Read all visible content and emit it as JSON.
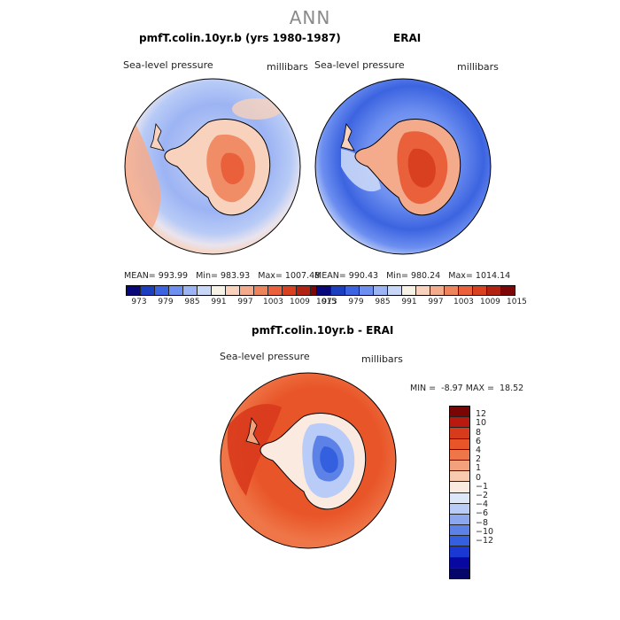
{
  "main_title": "ANN",
  "panels": [
    {
      "title": "pmfT.colin.10yr.b (yrs 1980-1987)",
      "variable": "Sea-level pressure",
      "units": "millibars",
      "stats": {
        "mean_label": "MEAN=",
        "mean": "993.99",
        "min_label": "Min=",
        "min": "983.93",
        "max_label": "Max=",
        "max": "1007.48"
      }
    },
    {
      "title": "ERAI",
      "variable": "Sea-level pressure",
      "units": "millibars",
      "stats": {
        "mean_label": "MEAN=",
        "mean": "990.43",
        "min_label": "Min=",
        "min": "980.24",
        "max_label": "Max=",
        "max": "1014.14"
      }
    },
    {
      "title": "pmfT.colin.10yr.b - ERAI",
      "variable": "Sea-level pressure",
      "units": "millibars",
      "stats": {
        "min_label": "MIN =",
        "min": "-8.97",
        "max_label": "MAX =",
        "max": "18.52"
      }
    }
  ],
  "colorbar_main": {
    "colors": [
      "#08087a",
      "#1c3fc0",
      "#3c64e0",
      "#6d8ff0",
      "#9db4f4",
      "#c9d7f7",
      "#f7f2e6",
      "#f8d2bc",
      "#f4ab8c",
      "#ee845c",
      "#e9603a",
      "#d84020",
      "#b22212",
      "#7d0606"
    ],
    "labels": [
      "973",
      "979",
      "985",
      "991",
      "997",
      "1003",
      "1009",
      "1015"
    ]
  },
  "colorbar_diff": {
    "colors": [
      "#7a0505",
      "#b81a10",
      "#d83a1c",
      "#e85528",
      "#ef7648",
      "#f3a17d",
      "#f8cbb0",
      "#fbeadf",
      "#dde7fa",
      "#b9cbf7",
      "#8aa7f0",
      "#5c82e8",
      "#3460e0",
      "#1a38d2",
      "#0808a0",
      "#06066a"
    ],
    "labels": [
      "12",
      "10",
      "8",
      "6",
      "4",
      "2",
      "1",
      "0",
      "−1",
      "−2",
      "−4",
      "−6",
      "−8",
      "−10",
      "−12"
    ]
  }
}
